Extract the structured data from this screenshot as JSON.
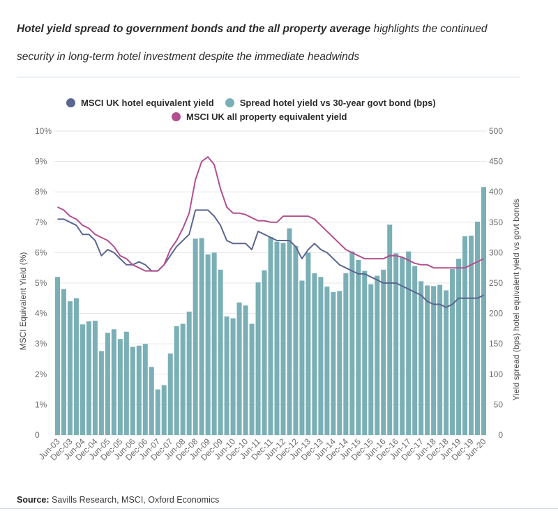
{
  "header": {
    "title_bold": "Hotel yield spread to government bonds and the all property average",
    "title_rest": " highlights the continued security in long-term hotel investment despite the immediate headwinds"
  },
  "footer": {
    "source_label": "Source:",
    "source_text": " Savills Research, MSCI, Oxford Economics"
  },
  "colors": {
    "hotel_yield": "#5b6690",
    "spread_bars": "#7aafb6",
    "all_property": "#b2508f"
  },
  "chart_data": {
    "type": "bar",
    "title": "",
    "ylabel": "MSCI Equivalent Yield (%)",
    "ylabel_right": "Yield spread (bps) hotel equivalent yield vs govt bonds",
    "ylim": [
      0,
      10
    ],
    "ylim_right": [
      0,
      500
    ],
    "yticks": [
      "0",
      "1%",
      "2%",
      "3%",
      "4%",
      "5%",
      "6%",
      "7%",
      "8%",
      "9%",
      "10%"
    ],
    "yticks_right": [
      "0",
      "50",
      "100",
      "150",
      "200",
      "250",
      "300",
      "350",
      "400",
      "450",
      "500"
    ],
    "categories": [
      "Jun-03",
      "Sep-03",
      "Dec-03",
      "Mar-04",
      "Jun-04",
      "Sep-04",
      "Dec-04",
      "Mar-05",
      "Jun-05",
      "Sep-05",
      "Dec-05",
      "Mar-06",
      "Jun-06",
      "Sep-06",
      "Dec-06",
      "Mar-07",
      "Jun-07",
      "Sep-07",
      "Dec-07",
      "Mar-08",
      "Jun-08",
      "Sep-08",
      "Dec-08",
      "Mar-09",
      "Jun-09",
      "Sep-09",
      "Dec-09",
      "Mar-10",
      "Jun-10",
      "Sep-10",
      "Dec-10",
      "Mar-11",
      "Jun-11",
      "Sep-11",
      "Dec-11",
      "Mar-12",
      "Jun-12",
      "Sep-12",
      "Dec-12",
      "Mar-13",
      "Jun-13",
      "Sep-13",
      "Dec-13",
      "Mar-14",
      "Jun-14",
      "Sep-14",
      "Dec-14",
      "Mar-15",
      "Jun-15",
      "Sep-15",
      "Dec-15",
      "Mar-16",
      "Jun-16",
      "Sep-16",
      "Dec-16",
      "Mar-17",
      "Jun-17",
      "Sep-17",
      "Dec-17",
      "Mar-18",
      "Jun-18",
      "Sep-18",
      "Dec-18",
      "Mar-19",
      "Jun-19",
      "Sep-19",
      "Dec-19",
      "Mar-20",
      "Jun-20"
    ],
    "xtick_labels": [
      "Jun-03",
      "Dec-03",
      "Jun-04",
      "Dec-04",
      "Jun-05",
      "Dec-05",
      "Jun-06",
      "Dec-06",
      "Jun-07",
      "Dec-07",
      "Jun-08",
      "Dec-08",
      "Jun-09",
      "Dec-09",
      "Jun-10",
      "Dec-10",
      "Jun-11",
      "Dec-11",
      "Jun-12",
      "Dec-12",
      "Jun-13",
      "Dec-13",
      "Jun-14",
      "Dec-14",
      "Jun-15",
      "Dec-15",
      "Jun-16",
      "Dec-16",
      "Jun-17",
      "Dec-17",
      "Jun-18",
      "Dec-18",
      "Jun-19",
      "Dec-19",
      "Jun-20"
    ],
    "series": [
      {
        "name": "MSCI UK hotel equivalent yield",
        "type": "line",
        "axis": "left",
        "values": [
          7.1,
          7.1,
          7.0,
          6.9,
          6.6,
          6.6,
          6.4,
          5.9,
          6.1,
          6.0,
          5.8,
          5.6,
          5.6,
          5.7,
          5.6,
          5.4,
          5.4,
          5.6,
          5.9,
          6.2,
          6.4,
          6.6,
          7.4,
          7.4,
          7.4,
          7.2,
          6.9,
          6.4,
          6.3,
          6.3,
          6.3,
          6.1,
          6.7,
          6.6,
          6.5,
          6.4,
          6.4,
          6.4,
          6.2,
          5.8,
          6.1,
          6.3,
          6.1,
          6.0,
          5.8,
          5.6,
          5.5,
          5.4,
          5.3,
          5.3,
          5.2,
          5.1,
          5.0,
          5.0,
          5.0,
          4.9,
          4.8,
          4.7,
          4.6,
          4.4,
          4.3,
          4.3,
          4.2,
          4.3,
          4.5,
          4.5,
          4.5,
          4.5,
          4.6
        ]
      },
      {
        "name": "Spread hotel yield vs 30-year govt bond (bps)",
        "type": "bar",
        "axis": "right",
        "values": [
          260,
          240,
          220,
          225,
          182,
          187,
          188,
          138,
          168,
          174,
          158,
          170,
          145,
          147,
          150,
          112,
          75,
          82,
          134,
          179,
          183,
          203,
          323,
          324,
          297,
          300,
          272,
          195,
          192,
          218,
          213,
          183,
          251,
          271,
          326,
          318,
          316,
          340,
          311,
          254,
          300,
          266,
          260,
          244,
          235,
          237,
          266,
          302,
          288,
          270,
          248,
          262,
          272,
          346,
          299,
          292,
          302,
          278,
          253,
          246,
          245,
          247,
          238,
          273,
          290,
          327,
          328,
          351,
          408
        ]
      },
      {
        "name": "MSCI UK all property equivalent yield",
        "type": "line",
        "axis": "left",
        "values": [
          7.5,
          7.4,
          7.2,
          7.1,
          6.9,
          6.8,
          6.6,
          6.5,
          6.4,
          6.2,
          5.9,
          5.8,
          5.6,
          5.5,
          5.4,
          5.4,
          5.4,
          5.6,
          6.1,
          6.4,
          6.8,
          7.3,
          8.4,
          9.0,
          9.15,
          8.9,
          8.1,
          7.5,
          7.3,
          7.3,
          7.25,
          7.15,
          7.05,
          7.05,
          7.0,
          7.0,
          7.2,
          7.2,
          7.2,
          7.2,
          7.2,
          7.1,
          6.9,
          6.7,
          6.5,
          6.3,
          6.1,
          6.0,
          5.9,
          5.8,
          5.8,
          5.8,
          5.8,
          5.9,
          5.9,
          5.85,
          5.75,
          5.65,
          5.6,
          5.6,
          5.5,
          5.5,
          5.5,
          5.5,
          5.5,
          5.5,
          5.6,
          5.7,
          5.8
        ]
      }
    ],
    "grid": true,
    "legend_position": "top"
  }
}
